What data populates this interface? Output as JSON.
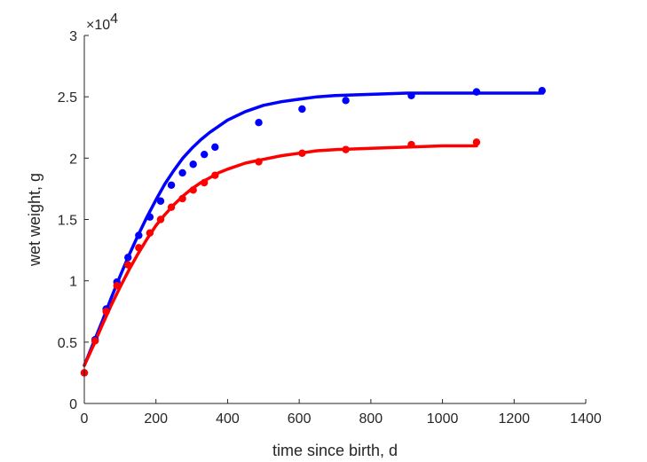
{
  "chart_data": {
    "type": "scatter",
    "title": "",
    "xlabel": "time since birth, d",
    "ylabel": "wet weight, g",
    "y_multiplier_label": {
      "base": "×10",
      "exponent": "4"
    },
    "xlim": [
      0,
      1400
    ],
    "ylim": [
      0,
      3
    ],
    "y_unit_scale": 10000,
    "xticks": [
      0,
      200,
      400,
      600,
      800,
      1000,
      1200,
      1400
    ],
    "xtick_labels": [
      "0",
      "200",
      "400",
      "600",
      "800",
      "1000",
      "1200",
      "1400"
    ],
    "yticks": [
      0,
      0.5,
      1,
      1.5,
      2,
      2.5,
      3
    ],
    "ytick_labels": [
      "0",
      "0.5",
      "1",
      "1.5",
      "2",
      "2.5",
      "3"
    ],
    "grid": false,
    "legend": "none",
    "series": [
      {
        "color": "#0000ff",
        "kind": "points",
        "x": [
          0,
          30,
          61,
          91,
          122,
          152,
          183,
          213,
          243,
          274,
          304,
          335,
          365,
          487,
          608,
          730,
          913,
          1095,
          1278
        ],
        "y": [
          0.25,
          0.52,
          0.77,
          0.99,
          1.19,
          1.37,
          1.52,
          1.65,
          1.78,
          1.88,
          1.95,
          2.03,
          2.09,
          2.29,
          2.4,
          2.47,
          2.51,
          2.54,
          2.55
        ]
      },
      {
        "color": "#ff0000",
        "kind": "points",
        "x": [
          0,
          30,
          61,
          91,
          122,
          152,
          183,
          213,
          243,
          274,
          304,
          335,
          365,
          487,
          608,
          730,
          913,
          1095
        ],
        "y": [
          0.25,
          0.51,
          0.75,
          0.96,
          1.13,
          1.27,
          1.39,
          1.5,
          1.6,
          1.67,
          1.74,
          1.8,
          1.86,
          1.97,
          2.04,
          2.07,
          2.11,
          2.13
        ]
      },
      {
        "color": "#0000ff",
        "kind": "curve",
        "x": [
          0,
          25,
          50,
          75,
          100,
          125,
          150,
          175,
          200,
          225,
          250,
          275,
          300,
          325,
          350,
          375,
          400,
          450,
          500,
          550,
          600,
          650,
          700,
          800,
          900,
          1000,
          1100,
          1200,
          1280
        ],
        "y": [
          0.31,
          0.49,
          0.67,
          0.86,
          1.04,
          1.21,
          1.37,
          1.52,
          1.66,
          1.79,
          1.9,
          2.0,
          2.08,
          2.15,
          2.21,
          2.26,
          2.31,
          2.38,
          2.43,
          2.46,
          2.48,
          2.5,
          2.51,
          2.52,
          2.53,
          2.53,
          2.53,
          2.53,
          2.53
        ]
      },
      {
        "color": "#ff0000",
        "kind": "curve",
        "x": [
          0,
          25,
          50,
          75,
          100,
          125,
          150,
          175,
          200,
          225,
          250,
          275,
          300,
          325,
          350,
          375,
          400,
          450,
          500,
          550,
          600,
          650,
          700,
          800,
          900,
          1000,
          1095
        ],
        "y": [
          0.31,
          0.47,
          0.64,
          0.8,
          0.95,
          1.09,
          1.22,
          1.34,
          1.45,
          1.54,
          1.62,
          1.69,
          1.75,
          1.8,
          1.84,
          1.88,
          1.91,
          1.96,
          1.99,
          2.02,
          2.04,
          2.06,
          2.07,
          2.08,
          2.09,
          2.1,
          2.1
        ]
      }
    ]
  }
}
